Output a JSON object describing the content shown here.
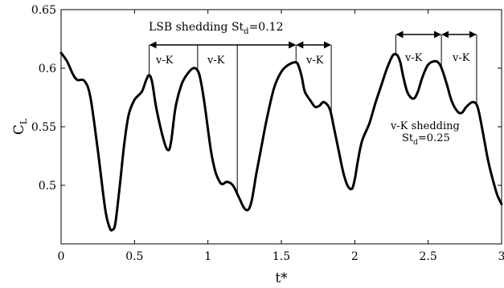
{
  "chart_data": {
    "type": "line",
    "xlabel": "t*",
    "ylabel": "C_L",
    "xlim": [
      0,
      3
    ],
    "ylim": [
      0.45,
      0.65
    ],
    "x_ticks": [
      0,
      0.5,
      1,
      1.5,
      2,
      2.5,
      3
    ],
    "x_tick_labels": [
      "0",
      "0.5",
      "1",
      "1.5",
      "2",
      "2.5",
      "3"
    ],
    "y_ticks": [
      0.5,
      0.55,
      0.6,
      0.65
    ],
    "y_tick_labels": [
      "0.5",
      "0.55",
      "0.6",
      "0.65"
    ],
    "grid": false,
    "series": [
      {
        "x": [
          0,
          0.04,
          0.08,
          0.11,
          0.16,
          0.2,
          0.25,
          0.3,
          0.33,
          0.35,
          0.37,
          0.4,
          0.43,
          0.46,
          0.5,
          0.55,
          0.58,
          0.6,
          0.62,
          0.65,
          0.7,
          0.73,
          0.75,
          0.78,
          0.82,
          0.86,
          0.9,
          0.93,
          0.95,
          0.98,
          1.02,
          1.05,
          1.08,
          1.1,
          1.13,
          1.17,
          1.21,
          1.24,
          1.26,
          1.28,
          1.3,
          1.33,
          1.36,
          1.4,
          1.45,
          1.5,
          1.55,
          1.6,
          1.62,
          1.64,
          1.66,
          1.7,
          1.73,
          1.76,
          1.79,
          1.83,
          1.86,
          1.89,
          1.92,
          1.95,
          1.98,
          2.0,
          2.02,
          2.05,
          2.1,
          2.14,
          2.18,
          2.22,
          2.26,
          2.29,
          2.31,
          2.33,
          2.36,
          2.4,
          2.43,
          2.46,
          2.5,
          2.55,
          2.58,
          2.6,
          2.63,
          2.66,
          2.7,
          2.73,
          2.76,
          2.8,
          2.83,
          2.85,
          2.88,
          2.91,
          2.94,
          2.97,
          3.0
        ],
        "y": [
          0.613,
          0.606,
          0.595,
          0.59,
          0.589,
          0.575,
          0.53,
          0.48,
          0.464,
          0.462,
          0.468,
          0.5,
          0.535,
          0.56,
          0.573,
          0.58,
          0.59,
          0.594,
          0.588,
          0.565,
          0.538,
          0.53,
          0.538,
          0.567,
          0.586,
          0.595,
          0.6,
          0.598,
          0.59,
          0.567,
          0.53,
          0.512,
          0.503,
          0.501,
          0.503,
          0.5,
          0.49,
          0.482,
          0.479,
          0.48,
          0.488,
          0.51,
          0.53,
          0.556,
          0.583,
          0.597,
          0.603,
          0.605,
          0.601,
          0.592,
          0.58,
          0.572,
          0.567,
          0.568,
          0.571,
          0.565,
          0.548,
          0.53,
          0.512,
          0.5,
          0.497,
          0.505,
          0.52,
          0.538,
          0.553,
          0.57,
          0.585,
          0.6,
          0.611,
          0.611,
          0.605,
          0.593,
          0.579,
          0.574,
          0.58,
          0.592,
          0.603,
          0.606,
          0.603,
          0.597,
          0.585,
          0.572,
          0.563,
          0.562,
          0.567,
          0.571,
          0.569,
          0.56,
          0.54,
          0.52,
          0.505,
          0.492,
          0.484
        ]
      }
    ],
    "vlines": [
      0.6,
      0.93,
      1.2,
      1.6,
      1.84,
      2.28,
      2.59,
      2.83
    ],
    "annotations": {
      "lsb_label": "LSB shedding St",
      "lsb_sub": "d",
      "lsb_value": "=0.12",
      "vk_label": "v-K",
      "vk_shed_line1": "v-K shedding",
      "vk_shed_line2_main": "St",
      "vk_shed_line2_sub": "d",
      "vk_shed_line2_value": "=0.25"
    },
    "ylabel_main": "C",
    "ylabel_sub": "L"
  }
}
